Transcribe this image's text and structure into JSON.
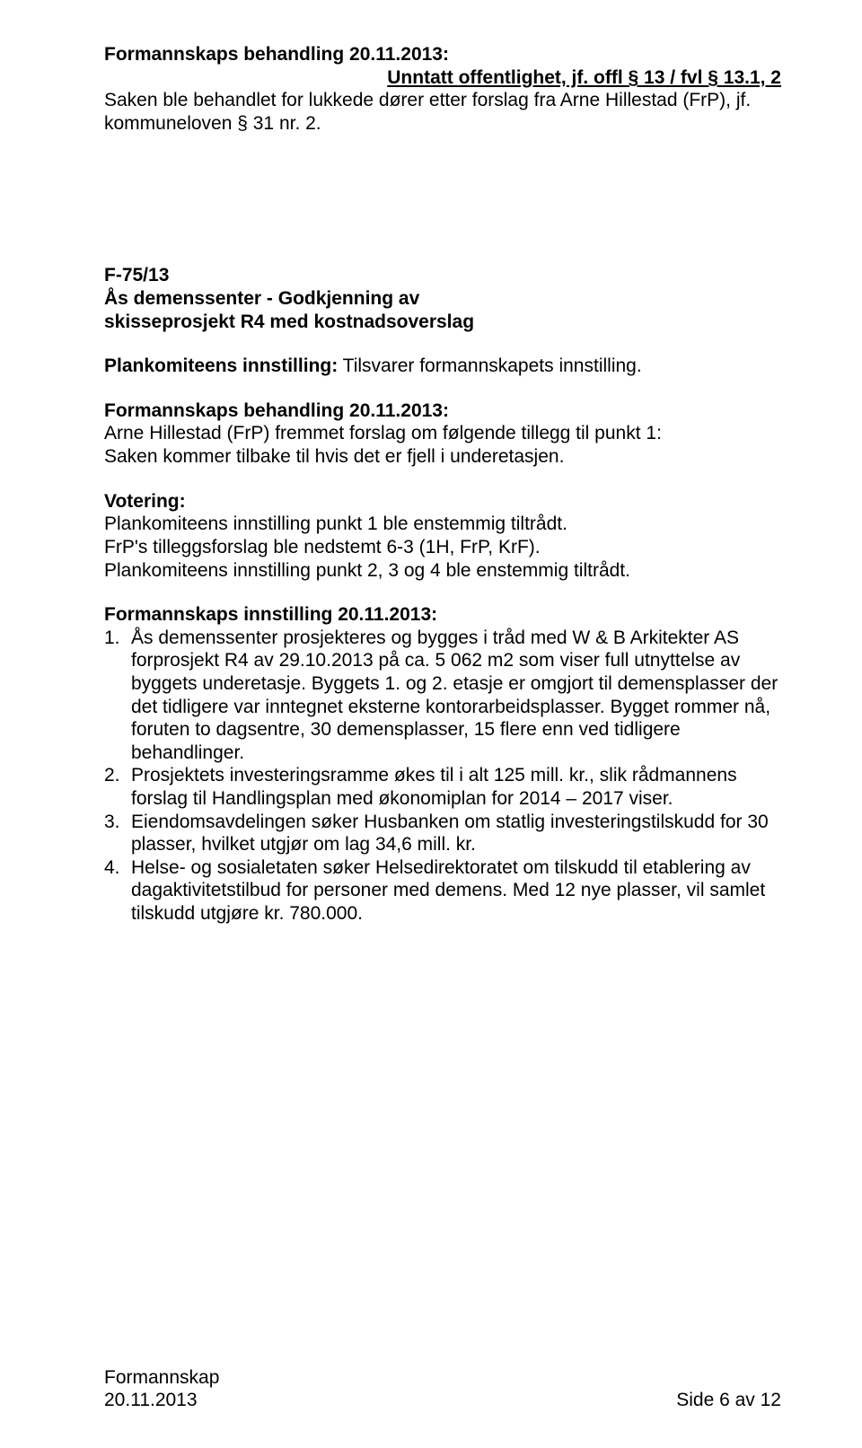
{
  "header": {
    "line1": "Formannskaps behandling 20.11.2013:",
    "line2": "Unntatt offentlighet, jf. offl § 13 / fvl § 13.1, 2",
    "para": "Saken ble behandlet for lukkede dører etter forslag fra Arne Hillestad (FrP), jf. kommuneloven § 31 nr. 2."
  },
  "case": {
    "ref": "F-75/13",
    "title_l1": "Ås demenssenter - Godkjenning av",
    "title_l2": "skisseprosjekt R4 med kostnadsoverslag"
  },
  "plankom_intro": {
    "label": "Plankomiteens innstilling:",
    "rest": " Tilsvarer formannskapets innstilling."
  },
  "behandling": {
    "heading": "Formannskaps behandling 20.11.2013:",
    "l1": "Arne Hillestad (FrP) fremmet forslag om følgende tillegg til punkt 1:",
    "l2": "Saken kommer tilbake til hvis det er fjell i underetasjen."
  },
  "votering": {
    "heading": "Votering:",
    "l1": "Plankomiteens innstilling punkt 1 ble enstemmig tiltrådt.",
    "l2": "FrP's tilleggsforslag ble nedstemt 6-3 (1H, FrP, KrF).",
    "l3": "Plankomiteens innstilling punkt 2, 3 og 4 ble enstemmig tiltrådt."
  },
  "innstilling": {
    "heading": "Formannskaps innstilling 20.11.2013:",
    "items": [
      "Ås demenssenter prosjekteres og bygges i tråd med W & B Arkitekter AS forprosjekt R4 av 29.10.2013 på ca. 5 062 m2 som viser full utnyttelse av byggets underetasje. Byggets 1. og 2. etasje er omgjort til demensplasser der det tidligere var inntegnet eksterne kontorarbeidsplasser. Bygget rommer nå, foruten to dagsentre, 30 demensplasser, 15 flere enn ved tidligere behandlinger.",
      "Prosjektets investeringsramme økes til i alt 125 mill. kr., slik rådmannens forslag til Handlingsplan med økonomiplan for 2014 – 2017 viser.",
      "Eiendomsavdelingen søker Husbanken om statlig investeringstilskudd for 30 plasser, hvilket utgjør om lag 34,6 mill. kr.",
      "Helse- og sosialetaten søker Helsedirektoratet om tilskudd til etablering av dagaktivitetstilbud for personer med demens. Med 12 nye plasser, vil samlet tilskudd utgjøre kr. 780.000."
    ]
  },
  "footer": {
    "left1": "Formannskap",
    "left2": "20.11.2013",
    "right": "Side 6 av 12"
  }
}
